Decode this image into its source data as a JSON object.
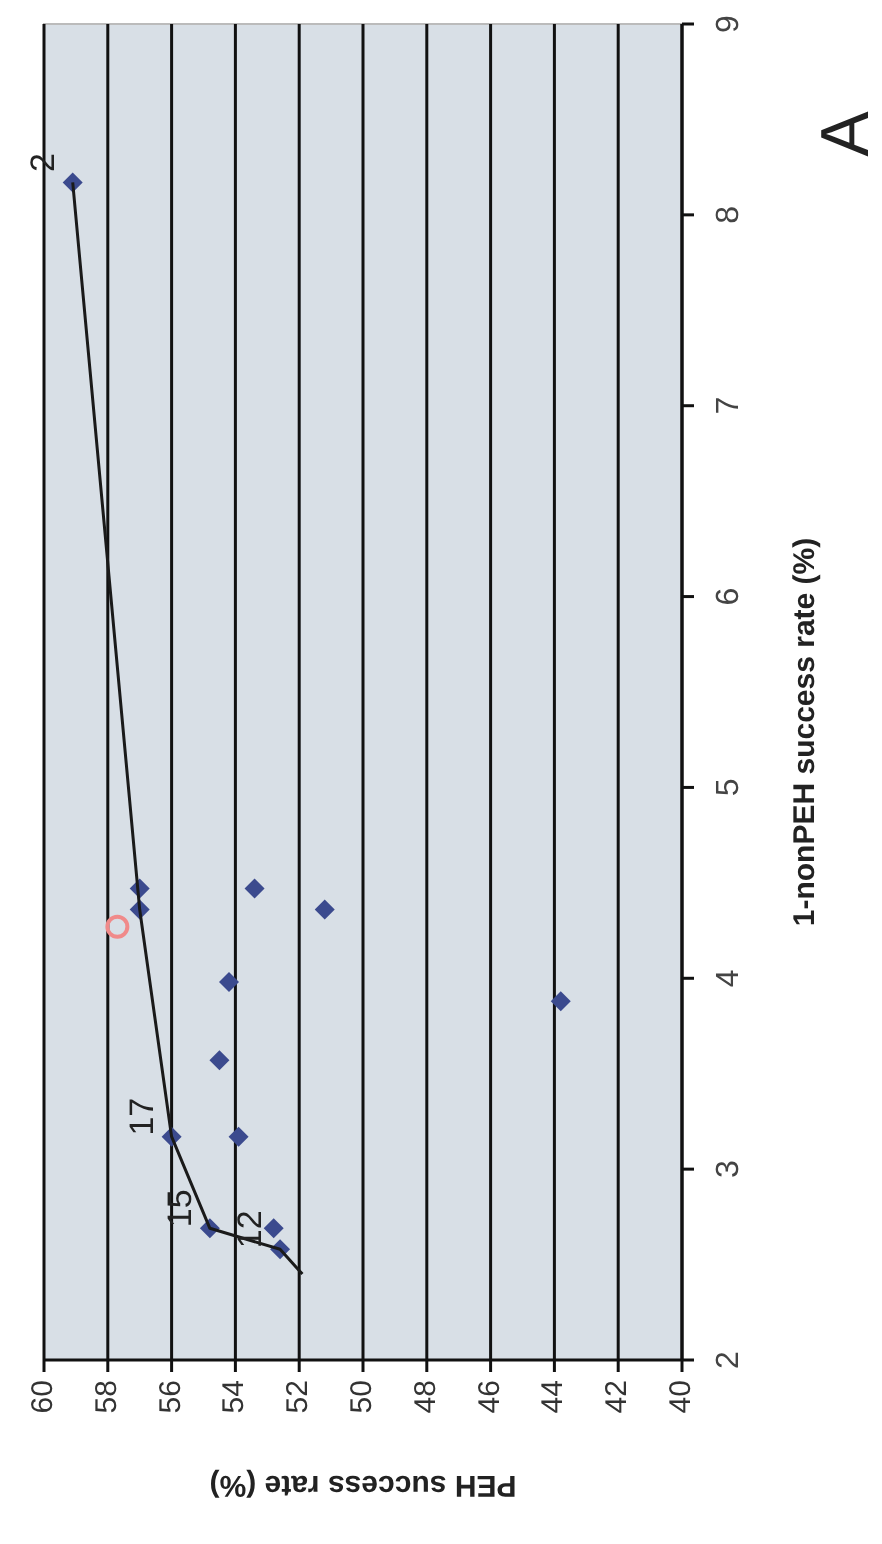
{
  "chart_data": {
    "type": "scatter",
    "title": "A",
    "xlabel": "PEH success rate (%)",
    "ylabel": "1-nonPEH success rate (%)",
    "xlim": [
      60,
      40
    ],
    "xticks": [
      60,
      58,
      56,
      54,
      52,
      50,
      48,
      46,
      44,
      42,
      40
    ],
    "ylim": [
      2,
      9
    ],
    "yticks": [
      2,
      3,
      4,
      5,
      6,
      7,
      8,
      9
    ],
    "grid": "x",
    "marker": "diamond",
    "series": [
      {
        "color": "#3b4a8e",
        "x": [
          59.1,
          57.0,
          57.0,
          53.4,
          51.2,
          54.2,
          43.8,
          54.5,
          56.0,
          53.9,
          54.8,
          52.8,
          52.6
        ],
        "values": [
          8.17,
          4.47,
          4.36,
          4.47,
          4.36,
          3.98,
          3.88,
          3.57,
          3.17,
          3.17,
          2.69,
          2.69,
          2.58
        ]
      },
      {
        "color": "#f08a8a",
        "marker": "circle",
        "x": [
          57.7
        ],
        "values": [
          4.27
        ]
      },
      {
        "type": "line",
        "color": "#1a1a1a",
        "marker": "none",
        "x": [
          51.9,
          52.6,
          54.8,
          56.0,
          57.0,
          59.1
        ],
        "values": [
          2.45,
          2.58,
          2.69,
          3.17,
          4.36,
          8.17
        ]
      }
    ],
    "annotations": [
      {
        "text": "2",
        "x": 59.1,
        "y": 8.17
      },
      {
        "text": "17",
        "x": 56.0,
        "y": 3.17
      },
      {
        "text": "15",
        "x": 54.8,
        "y": 2.69
      },
      {
        "text": "12",
        "x": 52.6,
        "y": 2.58
      }
    ]
  }
}
